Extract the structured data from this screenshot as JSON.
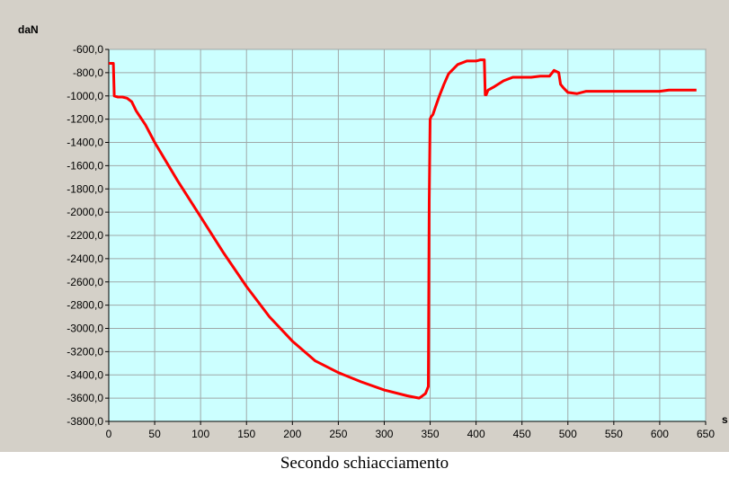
{
  "caption": "Secondo schiacciamento",
  "colors": {
    "frame_bg": "#d4d0c8",
    "plot_bg": "#ccffff",
    "grid": "#a0a8a8",
    "line": "#ff0000"
  },
  "chart_data": {
    "type": "line",
    "title": "",
    "ylabel": "daN",
    "xlabel": "s",
    "xlim": [
      0,
      650
    ],
    "ylim": [
      -3800,
      -600
    ],
    "grid": true,
    "x_ticks": [
      0,
      50,
      100,
      150,
      200,
      250,
      300,
      350,
      400,
      450,
      500,
      550,
      600,
      650
    ],
    "x_tick_labels": [
      "0",
      "50",
      "100",
      "150",
      "200",
      "250",
      "300",
      "350",
      "400",
      "450",
      "500",
      "550",
      "600",
      "650"
    ],
    "y_ticks": [
      -600,
      -800,
      -1000,
      -1200,
      -1400,
      -1600,
      -1800,
      -2000,
      -2200,
      -2400,
      -2600,
      -2800,
      -3000,
      -3200,
      -3400,
      -3600,
      -3800
    ],
    "y_tick_labels": [
      "-600,0",
      "-800,0",
      "-1000,0",
      "-1200,0",
      "-1400,0",
      "-1600,0",
      "-1800,0",
      "-2000,0",
      "-2200,0",
      "-2400,0",
      "-2600,0",
      "-2800,0",
      "-3000,0",
      "-3200,0",
      "-3400,0",
      "-3600,0",
      "-3800,0"
    ],
    "series": [
      {
        "x": [
          0,
          5,
          6,
          10,
          15,
          20,
          25,
          30,
          40,
          50,
          75,
          100,
          125,
          150,
          175,
          200,
          225,
          250,
          275,
          300,
          325,
          338,
          340,
          345,
          348,
          349,
          350,
          351,
          353,
          356,
          360,
          365,
          370,
          380,
          390,
          400,
          405,
          409,
          410,
          411,
          413,
          420,
          430,
          440,
          450,
          460,
          470,
          480,
          485,
          490,
          492,
          495,
          500,
          510,
          520,
          550,
          580,
          600,
          610,
          620,
          630,
          640
        ],
        "y": [
          -720,
          -720,
          -1000,
          -1010,
          -1010,
          -1020,
          -1050,
          -1130,
          -1250,
          -1400,
          -1730,
          -2040,
          -2350,
          -2640,
          -2900,
          -3110,
          -3280,
          -3380,
          -3460,
          -3530,
          -3580,
          -3600,
          -3590,
          -3560,
          -3500,
          -1900,
          -1200,
          -1180,
          -1160,
          -1090,
          -1000,
          -900,
          -810,
          -730,
          -700,
          -700,
          -690,
          -690,
          -990,
          -990,
          -950,
          -920,
          -870,
          -840,
          -840,
          -840,
          -830,
          -830,
          -780,
          -800,
          -900,
          -930,
          -970,
          -980,
          -960,
          -960,
          -960,
          -960,
          -950,
          -950,
          -950,
          -950
        ]
      }
    ]
  }
}
